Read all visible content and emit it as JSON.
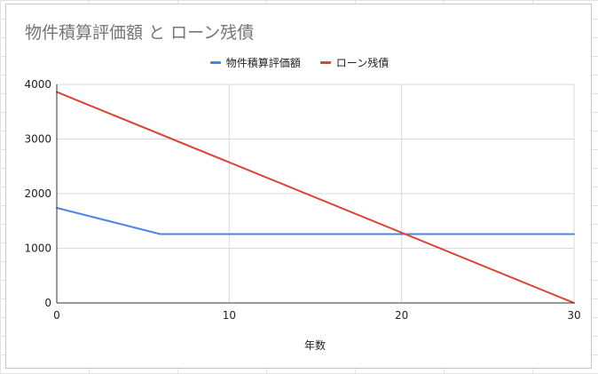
{
  "chart": {
    "title": "物件積算評価額 と ローン残債"
  },
  "chart_data": {
    "type": "line",
    "title": "物件積算評価額 と ローン残債",
    "xlabel": "年数",
    "ylabel": "",
    "xlim": [
      0,
      30
    ],
    "ylim": [
      0,
      4000
    ],
    "x_ticks": [
      0,
      10,
      20,
      30
    ],
    "y_ticks": [
      0,
      1000,
      2000,
      3000,
      4000
    ],
    "grid": true,
    "legend_position": "top",
    "series": [
      {
        "name": "物件積算評価額",
        "color": "#4a86e8",
        "points": [
          [
            0,
            1740
          ],
          [
            6,
            1260
          ],
          [
            30,
            1260
          ]
        ]
      },
      {
        "name": "ローン残債",
        "color": "#db4437",
        "points": [
          [
            0,
            3860
          ],
          [
            30,
            0
          ]
        ]
      }
    ]
  }
}
